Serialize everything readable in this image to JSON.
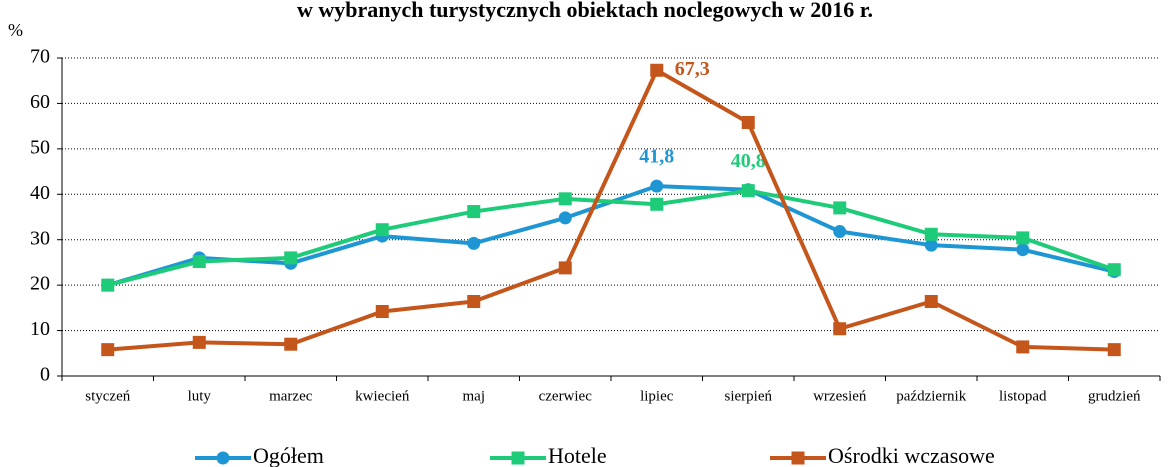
{
  "chart_data": {
    "type": "line",
    "title": "w wybranych turystycznych obiektach noclegowych w 2016 r.",
    "ylabel": "%",
    "categories": [
      "styczeń",
      "luty",
      "marzec",
      "kwiecień",
      "maj",
      "czerwiec",
      "lipiec",
      "sierpień",
      "wrzesień",
      "październik",
      "listopad",
      "grudzień"
    ],
    "series": [
      {
        "name": "Ogółem",
        "color": "#1f96d4",
        "marker": "circle",
        "values": [
          20,
          26,
          24.8,
          30.8,
          29.2,
          34.8,
          41.8,
          41,
          31.8,
          28.8,
          27.8,
          23
        ],
        "value_labels": [
          null,
          null,
          null,
          null,
          null,
          null,
          "41,8",
          null,
          null,
          null,
          null,
          null
        ]
      },
      {
        "name": "Hotele",
        "color": "#1ecb78",
        "marker": "square",
        "values": [
          20,
          25.2,
          26,
          32.2,
          36.2,
          39,
          37.8,
          40.8,
          37,
          31.2,
          30.4,
          23.4
        ],
        "value_labels": [
          null,
          null,
          null,
          null,
          null,
          null,
          null,
          "40,8",
          null,
          null,
          null,
          null
        ]
      },
      {
        "name": "Ośrodki wczasowe",
        "color": "#c4561c",
        "marker": "square",
        "values": [
          5.8,
          7.4,
          7,
          14.2,
          16.4,
          23.8,
          67.3,
          55.8,
          10.4,
          16.4,
          6.4,
          5.8
        ],
        "value_labels": [
          null,
          null,
          null,
          null,
          null,
          null,
          "67,3",
          null,
          null,
          null,
          null,
          null
        ]
      }
    ],
    "ylim": [
      0,
      70
    ],
    "yticks": [
      0,
      10,
      20,
      30,
      40,
      50,
      60,
      70
    ],
    "grid": true,
    "legend": "bottom"
  }
}
